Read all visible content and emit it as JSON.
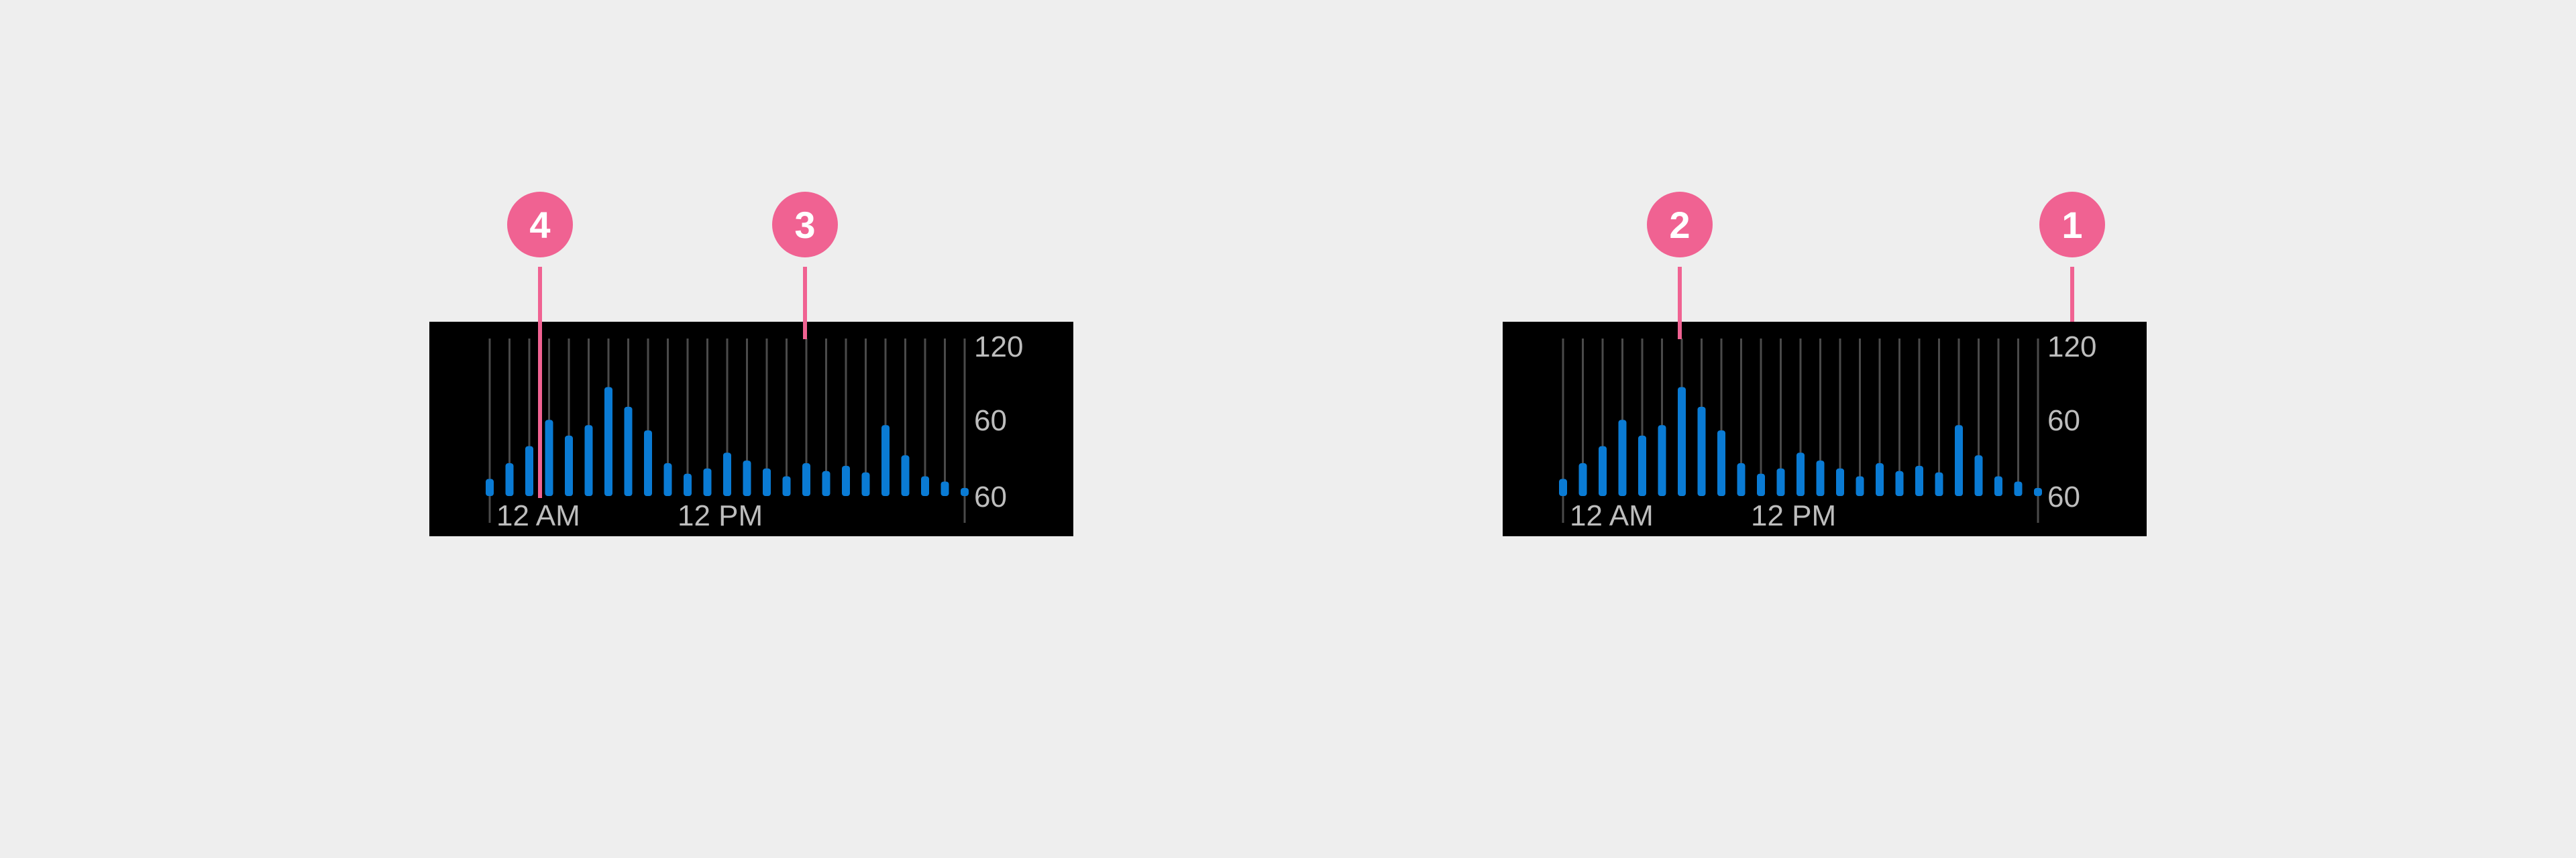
{
  "colors": {
    "background": "#eeeeee",
    "panel": "#000000",
    "bar": "#0a7bd4",
    "gridline": "#4a4a4a",
    "text": "#bdbdbd",
    "callout": "#f06292"
  },
  "charts": [
    {
      "callouts": [
        {
          "label": "4",
          "points_to": "selected-bar"
        },
        {
          "label": "3",
          "points_to": "gridline"
        }
      ]
    },
    {
      "callouts": [
        {
          "label": "2",
          "points_to": "highest-bar"
        },
        {
          "label": "1",
          "points_to": "y-axis-labels"
        }
      ]
    }
  ],
  "chart_data": [
    {
      "type": "bar",
      "ylabels_shown": [
        "120",
        "60",
        "60"
      ],
      "xlabels_shown": [
        "12 AM",
        "12 PM"
      ],
      "values": [
        13,
        25,
        38,
        58,
        46,
        54,
        83,
        68,
        50,
        25,
        17,
        21,
        33,
        27,
        21,
        15,
        25,
        19,
        23,
        18,
        54,
        31,
        15,
        11,
        6
      ],
      "selected_index": 3,
      "ylim": [
        0,
        120
      ],
      "grid": true
    },
    {
      "type": "bar",
      "ylabels_shown": [
        "120",
        "60",
        "60"
      ],
      "xlabels_shown": [
        "12 AM",
        "12 PM"
      ],
      "values": [
        13,
        25,
        38,
        58,
        46,
        54,
        83,
        68,
        50,
        25,
        17,
        21,
        33,
        27,
        21,
        15,
        25,
        19,
        23,
        18,
        54,
        31,
        15,
        11,
        6
      ],
      "highlight_index": 6,
      "ylim": [
        0,
        120
      ],
      "grid": true
    }
  ]
}
